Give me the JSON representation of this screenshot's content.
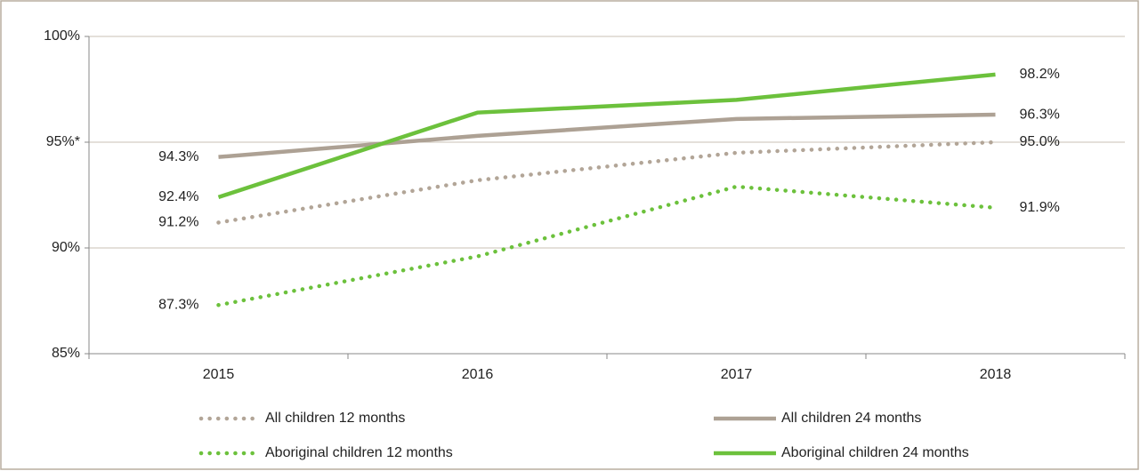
{
  "chart_data": {
    "type": "line",
    "categories": [
      "2015",
      "2016",
      "2017",
      "2018"
    ],
    "series": [
      {
        "name": "All children 12 months",
        "color": "#b2a597",
        "dash": "dotted",
        "values": [
          91.2,
          93.2,
          94.5,
          95.0
        ],
        "value_labels": [
          "91.2%",
          null,
          null,
          "95.0%"
        ]
      },
      {
        "name": "All children 24 months",
        "color": "#ada194",
        "dash": "solid",
        "values": [
          94.3,
          95.3,
          96.1,
          96.3
        ],
        "value_labels": [
          "94.3%",
          null,
          null,
          "96.3%"
        ]
      },
      {
        "name": "Aboriginal children 12 months",
        "color": "#6cc13c",
        "dash": "dotted",
        "values": [
          87.3,
          89.6,
          92.9,
          91.9
        ],
        "value_labels": [
          "87.3%",
          null,
          null,
          "91.9%"
        ]
      },
      {
        "name": "Aboriginal children 24 months",
        "color": "#6cc13c",
        "dash": "solid",
        "values": [
          92.4,
          96.4,
          97.0,
          98.2
        ],
        "value_labels": [
          "92.4%",
          null,
          null,
          "98.2%"
        ]
      }
    ],
    "ylim": [
      85,
      100
    ],
    "yticks": [
      {
        "value": 85,
        "label": "85%"
      },
      {
        "value": 90,
        "label": "90%"
      },
      {
        "value": 95,
        "label": "95%*"
      },
      {
        "value": 100,
        "label": "100%"
      }
    ],
    "grid": true,
    "legend": "bottom"
  }
}
